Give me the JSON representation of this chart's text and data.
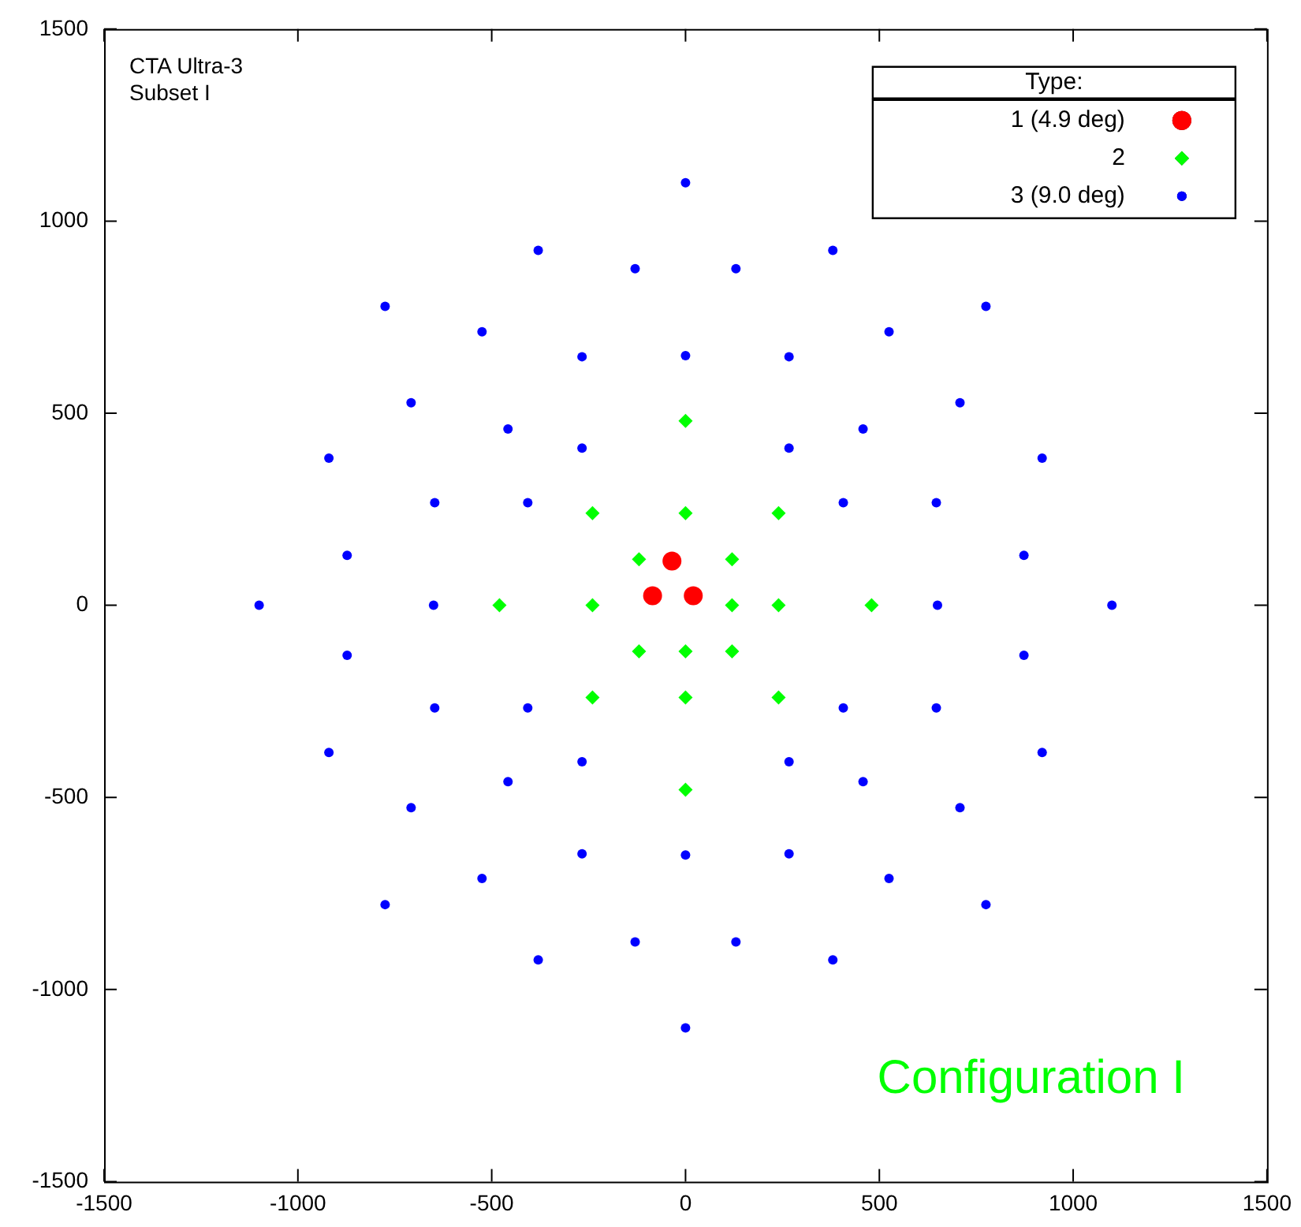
{
  "chart_data": {
    "type": "scatter",
    "legend_title": "Type:",
    "legend": "top right",
    "grid": false,
    "xlim": [
      -1500,
      1500
    ],
    "xticks": [
      -1500,
      -1000,
      -500,
      0,
      500,
      1000,
      1500
    ],
    "ylim": [
      -1500,
      1500
    ],
    "yticks": [
      -1500,
      -1000,
      -500,
      0,
      500,
      1000,
      1500
    ],
    "annotations": [
      "CTA Ultra-3",
      "Subset I",
      "Configuration I"
    ],
    "series": [
      {
        "name": "1 (4.9 deg)",
        "color": "#ff0000",
        "marker": "circle",
        "x": [
          -35,
          -85,
          20
        ],
        "values": [
          115,
          25,
          25
        ]
      },
      {
        "name": "2",
        "color": "#00ff00",
        "marker": "diamond",
        "x": [
          0,
          -240,
          0,
          240,
          -120,
          120,
          -480,
          -240,
          120,
          240,
          480,
          -120,
          0,
          120,
          -240,
          0,
          240,
          0
        ],
        "values": [
          480,
          240,
          240,
          240,
          120,
          120,
          0,
          0,
          0,
          0,
          0,
          -120,
          -120,
          -120,
          -240,
          -240,
          -240,
          -480
        ]
      },
      {
        "name": "3 (9.0 deg)",
        "color": "#0000ff",
        "marker": "circle",
        "x": [
          0,
          -380,
          380,
          -130,
          130,
          -775,
          775,
          -525,
          525,
          -267,
          267,
          0,
          -708,
          708,
          -458,
          458,
          -267,
          267,
          -920,
          920,
          -647,
          647,
          -407,
          407,
          -873,
          873,
          -1100,
          1100,
          -650,
          650,
          -873,
          873,
          -647,
          647,
          -407,
          407,
          -920,
          920,
          -267,
          267,
          -458,
          458,
          -708,
          708,
          -267,
          267,
          0,
          -525,
          525,
          -775,
          775,
          -130,
          130,
          -380,
          380,
          0
        ],
        "values": [
          1100,
          924,
          924,
          876,
          876,
          778,
          778,
          712,
          712,
          647,
          647,
          650,
          527,
          527,
          459,
          459,
          409,
          409,
          383,
          383,
          267,
          267,
          267,
          267,
          130,
          130,
          0,
          0,
          0,
          0,
          -130,
          -130,
          -267,
          -267,
          -267,
          -267,
          -383,
          -383,
          -407,
          -407,
          -459,
          -459,
          -527,
          -527,
          -647,
          -647,
          -650,
          -711,
          -711,
          -779,
          -779,
          -876,
          -876,
          -923,
          -923,
          -1100
        ]
      }
    ]
  }
}
